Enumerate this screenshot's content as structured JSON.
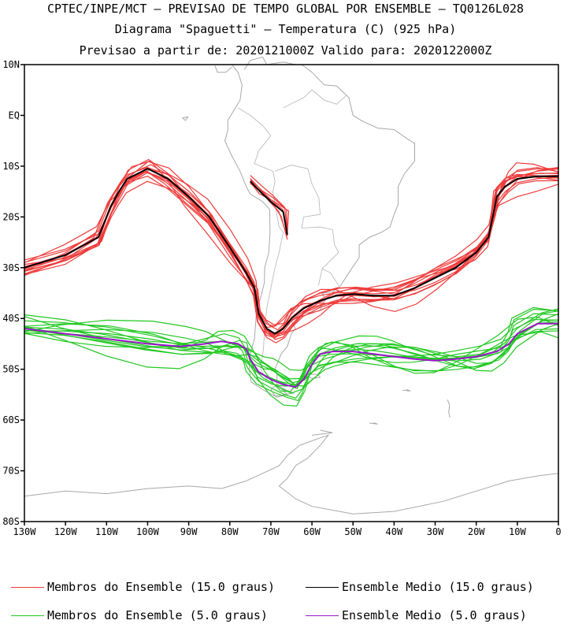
{
  "titles": {
    "line1": "CPTEC/INPE/MCT – PREVISAO DE TEMPO GLOBAL POR ENSEMBLE – TQ0126L028",
    "line2": "Diagrama \"Spaguetti\" – Temperatura (C) (925 hPa)",
    "line3": "Previsao a partir de: 2020121000Z  Valido para: 2020122000Z"
  },
  "map": {
    "lon_range": [
      -130,
      0
    ],
    "lat_range": [
      -80,
      10
    ],
    "lat_ticks": [
      "10N",
      "EQ",
      "10S",
      "20S",
      "30S",
      "40S",
      "50S",
      "60S",
      "70S",
      "80S"
    ],
    "lon_ticks": [
      "130W",
      "120W",
      "110W",
      "100W",
      "90W",
      "80W",
      "70W",
      "60W",
      "50W",
      "40W",
      "30W",
      "20W",
      "10W",
      "0"
    ],
    "coast_color": "#a8a8a8"
  },
  "chart_data": {
    "type": "line",
    "x_unit": "longitude (deg)",
    "y_unit": "latitude (deg)",
    "series": [
      {
        "name": "Ensemble Medio (15.0 graus)",
        "color": "#000000",
        "x": [
          -130,
          -120,
          -112,
          -109,
          -107,
          -105,
          -100,
          -95,
          -90,
          -85,
          -80,
          -76,
          -74,
          -73,
          -71,
          -69,
          -67,
          -65,
          -62,
          -58,
          -54,
          -50,
          -45,
          -40,
          -35,
          -30,
          -25,
          -20,
          -17,
          -16,
          -15,
          -13,
          -10,
          -5,
          0
        ],
        "y": [
          -30,
          -27.5,
          -24,
          -18,
          -15,
          -12.5,
          -10.5,
          -12.5,
          -16,
          -20,
          -26,
          -31,
          -34,
          -39,
          -42,
          -43,
          -42,
          -40,
          -38,
          -36.5,
          -35.5,
          -35.2,
          -35.5,
          -35.5,
          -34,
          -32,
          -30,
          -27,
          -24,
          -20,
          -16,
          -14,
          -12.5,
          -12,
          -12
        ]
      },
      {
        "name": "Ensemble Medio (5.0 graus)",
        "color": "#9a17c8",
        "x": [
          -130,
          -120,
          -110,
          -100,
          -92,
          -86,
          -82,
          -78,
          -76,
          -75,
          -73,
          -70,
          -67,
          -64,
          -62,
          -60,
          -58,
          -55,
          -50,
          -45,
          -40,
          -35,
          -30,
          -25,
          -20,
          -15,
          -12,
          -10,
          -5,
          0
        ],
        "y": [
          -42,
          -43,
          -44,
          -45,
          -45.5,
          -45,
          -44.5,
          -45,
          -46,
          -48,
          -50.5,
          -52,
          -53,
          -53.5,
          -52,
          -49,
          -47,
          -46.5,
          -46.5,
          -47,
          -47.5,
          -48,
          -48.3,
          -48,
          -47.5,
          -46.5,
          -45,
          -43,
          -41,
          -41
        ]
      },
      {
        "name": "Ensemble Medio (15.0 graus)",
        "color": "#000000",
        "x": [
          -75,
          -72,
          -70,
          -67,
          -66
        ],
        "y": [
          -13,
          -15.5,
          -17,
          -19,
          -23.5
        ]
      }
    ],
    "members": [
      {
        "name": "Membros do Ensemble (15.0 graus)",
        "color": "#ee3a3a",
        "count": 14
      },
      {
        "name": "Membros do Ensemble (5.0 graus)",
        "color": "#22c822",
        "count": 14
      }
    ]
  },
  "legend": [
    {
      "label": "Membros do Ensemble (15.0 graus)",
      "color": "#ee3a3a"
    },
    {
      "label": "Ensemble Medio (15.0 graus)",
      "color": "#000000"
    },
    {
      "label": "Membros do Ensemble (5.0 graus)",
      "color": "#22c822"
    },
    {
      "label": "Ensemble Medio (5.0 graus)",
      "color": "#9a17c8"
    }
  ]
}
